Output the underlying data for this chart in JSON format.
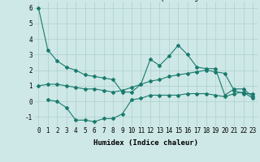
{
  "xlabel": "Humidex (Indice chaleur)",
  "ylabel": "",
  "bg_color": "#cde8e6",
  "grid_color": "#aecfcd",
  "line_color": "#1a7a6e",
  "xlim": [
    -0.5,
    23.5
  ],
  "ylim": [
    -1.6,
    6.4
  ],
  "yticks": [
    -1,
    0,
    1,
    2,
    3,
    4,
    5,
    6
  ],
  "xtick_labels": [
    "0",
    "1",
    "2",
    "3",
    "4",
    "5",
    "6",
    "7",
    "8",
    "9",
    "10",
    "11",
    "12",
    "13",
    "14",
    "15",
    "16",
    "17",
    "18",
    "19",
    "20",
    "21",
    "22",
    "23"
  ],
  "line1_x": [
    0,
    1,
    2,
    3,
    4,
    5,
    6,
    7,
    8,
    9,
    10,
    11,
    12,
    13,
    14,
    15,
    16,
    17,
    18,
    19,
    20,
    21,
    22,
    23
  ],
  "line1_y": [
    6.0,
    3.3,
    2.6,
    2.2,
    2.0,
    1.7,
    1.6,
    1.5,
    1.4,
    0.6,
    0.6,
    1.1,
    2.7,
    2.3,
    2.9,
    3.6,
    3.0,
    2.2,
    2.1,
    2.1,
    0.4,
    0.8,
    0.8,
    0.3
  ],
  "line2_x": [
    0,
    1,
    2,
    3,
    4,
    5,
    6,
    7,
    8,
    9,
    10,
    11,
    12,
    13,
    14,
    15,
    16,
    17,
    18,
    19,
    20,
    21,
    22,
    23
  ],
  "line2_y": [
    1.0,
    1.1,
    1.1,
    1.0,
    0.9,
    0.8,
    0.8,
    0.7,
    0.6,
    0.7,
    0.9,
    1.1,
    1.3,
    1.4,
    1.6,
    1.7,
    1.8,
    1.9,
    2.0,
    1.9,
    1.8,
    0.7,
    0.5,
    0.5
  ],
  "line3_x": [
    1,
    2,
    3,
    4,
    5,
    6,
    7,
    8,
    9,
    10,
    11,
    12,
    13,
    14,
    15,
    16,
    17,
    18,
    19,
    20,
    21,
    22,
    23
  ],
  "line3_y": [
    0.1,
    0.0,
    -0.4,
    -1.2,
    -1.2,
    -1.3,
    -1.1,
    -1.1,
    -0.8,
    0.1,
    0.2,
    0.4,
    0.4,
    0.4,
    0.4,
    0.5,
    0.5,
    0.5,
    0.4,
    0.3,
    0.5,
    0.6,
    0.2
  ],
  "marker": "D",
  "markersize": 2.0,
  "linewidth": 0.8,
  "label_fontsize": 6.5,
  "tick_fontsize": 5.5
}
